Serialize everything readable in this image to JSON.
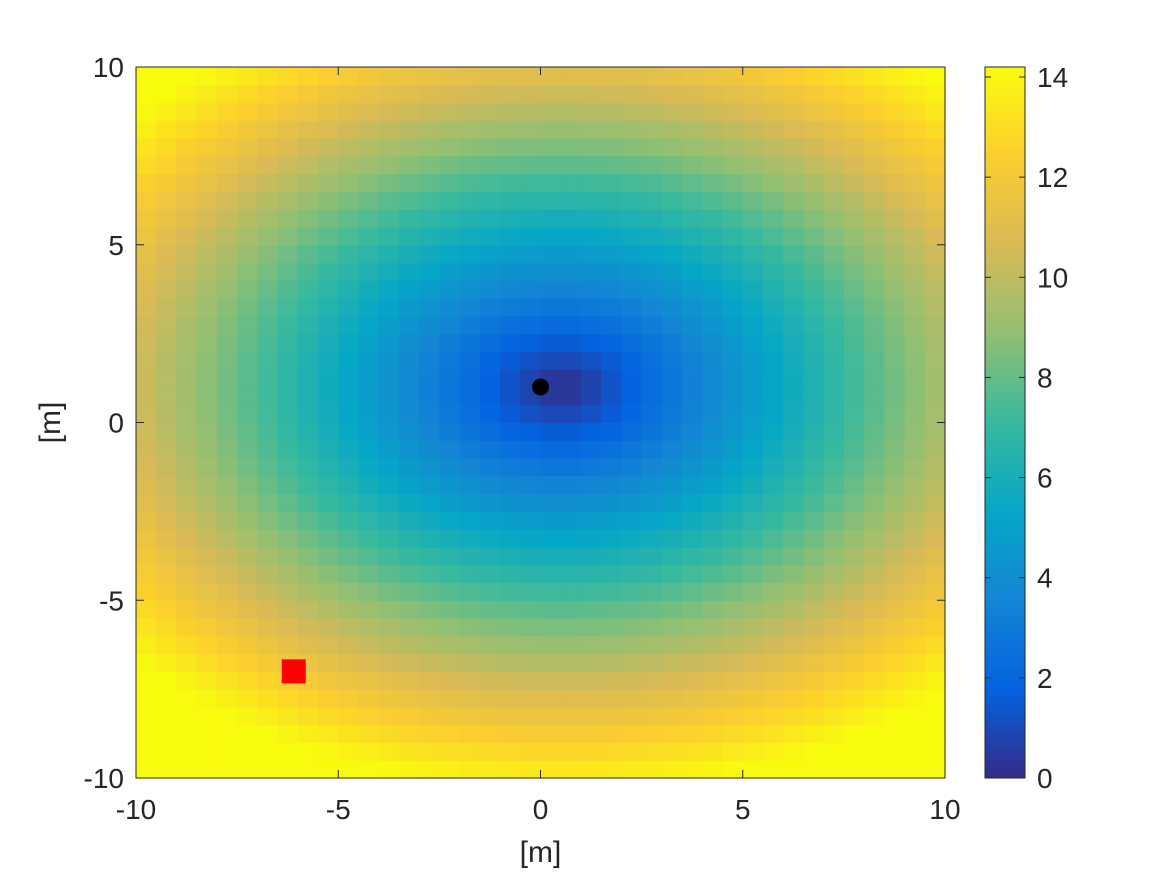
{
  "chart_data": {
    "type": "heatmap",
    "title": "",
    "xlabel": "[m]",
    "ylabel": "[m]",
    "xlim": [
      -10,
      10
    ],
    "ylim": [
      -10,
      10
    ],
    "x_ticks": [
      -10,
      -5,
      0,
      5,
      10
    ],
    "y_ticks": [
      -10,
      -5,
      0,
      5,
      10
    ],
    "x_tick_labels": [
      "-10",
      "-5",
      "0",
      "5",
      "10"
    ],
    "y_tick_labels": [
      "-10",
      "-5",
      "0",
      "5",
      "10"
    ],
    "grid": false,
    "colormap": "parula",
    "color_range": [
      0,
      14.2
    ],
    "colorbar_ticks": [
      0,
      2,
      4,
      6,
      8,
      10,
      12,
      14
    ],
    "colorbar_tick_labels": [
      "0",
      "2",
      "4",
      "6",
      "8",
      "10",
      "12",
      "14"
    ],
    "grid_resolution": 40,
    "field": {
      "description_of_values": "distance from marked point",
      "center": [
        0.5,
        1.0
      ],
      "x_scale": 1.0,
      "y_scale": 1.25
    },
    "markers": [
      {
        "name": "black-dot",
        "shape": "circle",
        "color": "#000000",
        "x": 0,
        "y": 1
      },
      {
        "name": "red-square",
        "shape": "square",
        "color": "#ff0000",
        "x": -6.1,
        "y": -7
      }
    ],
    "colors": {
      "parula_stops": [
        "#352a87",
        "#0363e1",
        "#1485d4",
        "#06a7c6",
        "#38b99e",
        "#92bf73",
        "#d9ba56",
        "#fcce2e",
        "#f9fb0e"
      ],
      "axis_color": "#262626"
    }
  }
}
